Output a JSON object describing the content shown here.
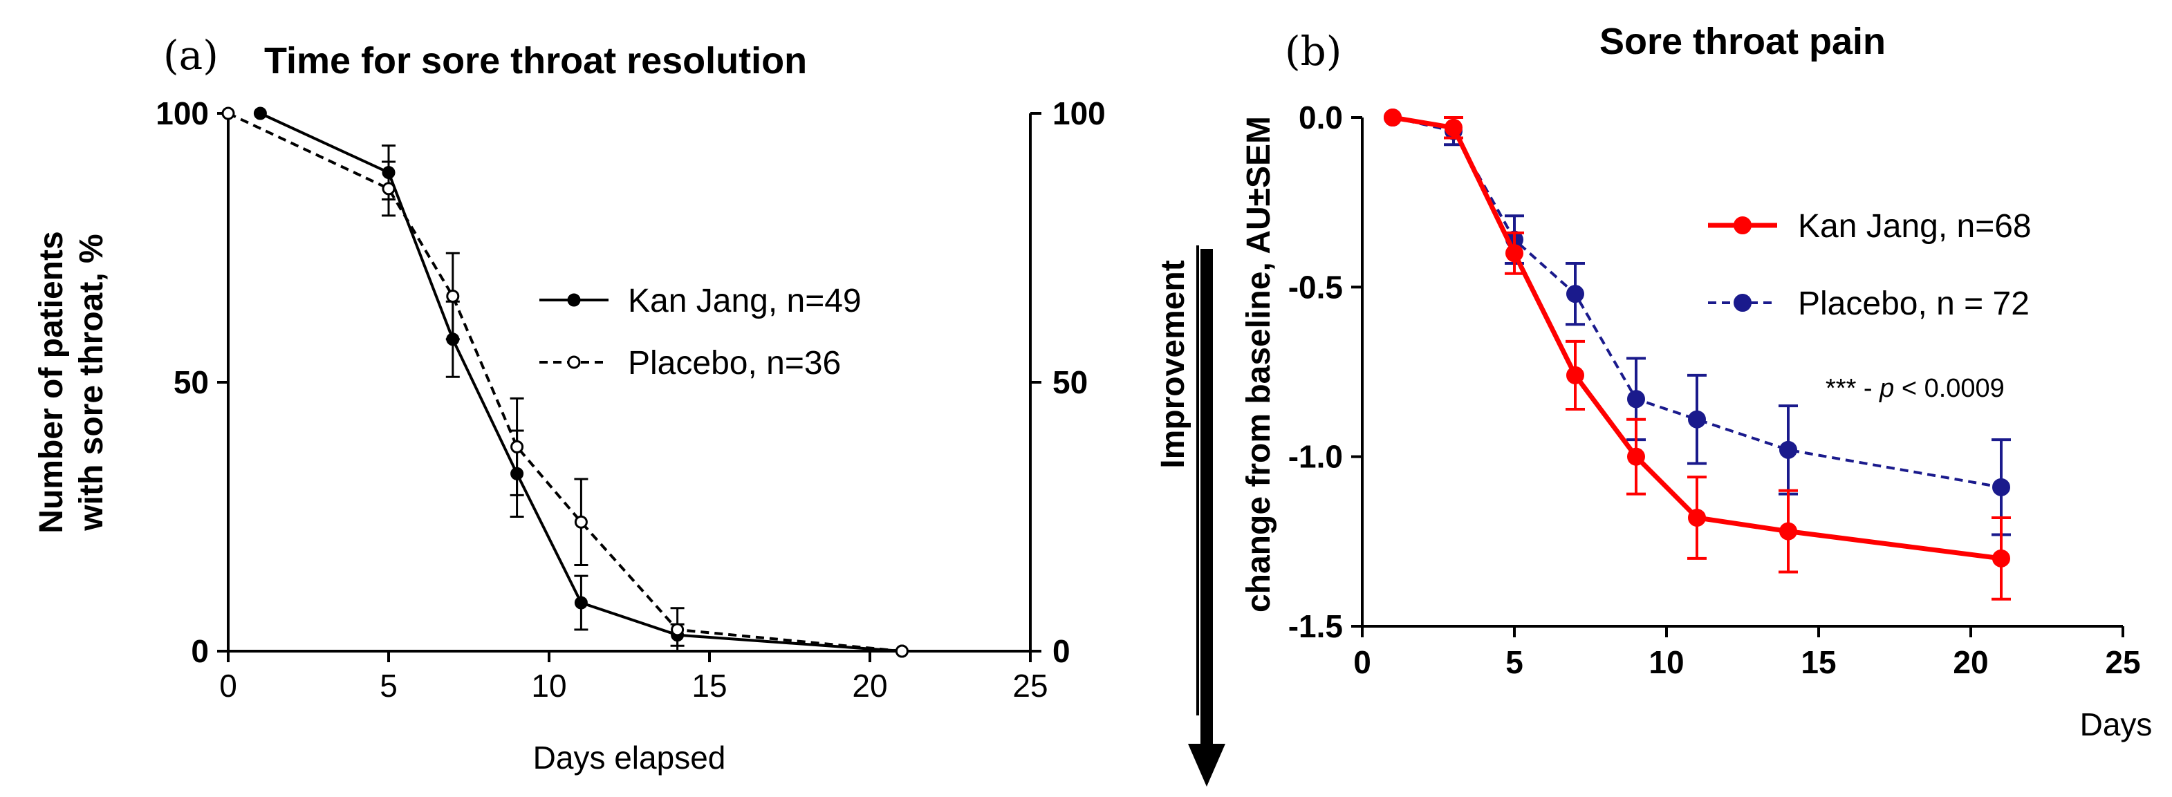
{
  "chart_data": [
    {
      "panel": "(a)",
      "type": "line",
      "title": "Time for sore throat resolution",
      "xlabel": "Days elapsed",
      "ylabel": [
        "Number of patients",
        "with sore throat, %"
      ],
      "xlim": [
        0,
        25
      ],
      "ylim": [
        0,
        100
      ],
      "x_ticks": [
        0,
        5,
        10,
        15,
        20,
        25
      ],
      "y_ticks": [
        0,
        50,
        100
      ],
      "y_right_ticks": [
        0,
        50,
        100
      ],
      "legend_position": "center-right",
      "series": [
        {
          "name": "Kan Jang, n=49",
          "style": "solid",
          "marker": "filled-circle",
          "color": "#000000",
          "x": [
            1,
            5,
            7,
            9,
            11,
            14,
            21
          ],
          "y": [
            100,
            89,
            58,
            33,
            9,
            3,
            0
          ],
          "err": [
            0,
            5,
            7,
            8,
            5,
            2,
            0
          ]
        },
        {
          "name": "Placebo, n=36",
          "style": "dashed",
          "marker": "open-circle",
          "color": "#000000",
          "x": [
            0,
            5,
            7,
            9,
            11,
            14,
            21
          ],
          "y": [
            100,
            86,
            66,
            38,
            24,
            4,
            0
          ],
          "err": [
            0,
            5,
            8,
            9,
            8,
            4,
            0
          ]
        }
      ]
    },
    {
      "panel": "(b)",
      "type": "line",
      "title": "Sore throat pain",
      "xlabel": "Days",
      "ylabel_top": "Improvement",
      "ylabel": "change from baseline, AU±SEM",
      "xlim": [
        0,
        25
      ],
      "ylim": [
        -1.5,
        0.0
      ],
      "x_ticks": [
        0,
        5,
        10,
        15,
        20,
        25
      ],
      "y_ticks": [
        0.0,
        -0.5,
        -1.0,
        -1.5
      ],
      "y_tick_labels": [
        "0.0",
        "-0.5",
        "-1.0",
        "-1.5"
      ],
      "legend_position": "center-right",
      "annotation": {
        "stars": "*** - ",
        "p": "p",
        "rest": " < 0.0009"
      },
      "series": [
        {
          "name": "Kan Jang, n=68",
          "style": "solid",
          "marker": "filled-circle",
          "color": "#ff0000",
          "x": [
            1,
            3,
            5,
            7,
            9,
            11,
            14,
            21
          ],
          "y": [
            0,
            -0.03,
            -0.4,
            -0.76,
            -1.0,
            -1.18,
            -1.22,
            -1.3
          ],
          "err": [
            0,
            0.03,
            0.06,
            0.1,
            0.11,
            0.12,
            0.12,
            0.12
          ]
        },
        {
          "name": "Placebo, n = 72",
          "style": "dashed",
          "marker": "filled-circle",
          "color": "#1a1a8c",
          "x": [
            1,
            3,
            5,
            7,
            9,
            11,
            14,
            21
          ],
          "y": [
            0,
            -0.04,
            -0.36,
            -0.52,
            -0.83,
            -0.89,
            -0.98,
            -1.09
          ],
          "err": [
            0,
            0.04,
            0.07,
            0.09,
            0.12,
            0.13,
            0.13,
            0.14
          ]
        }
      ]
    }
  ]
}
